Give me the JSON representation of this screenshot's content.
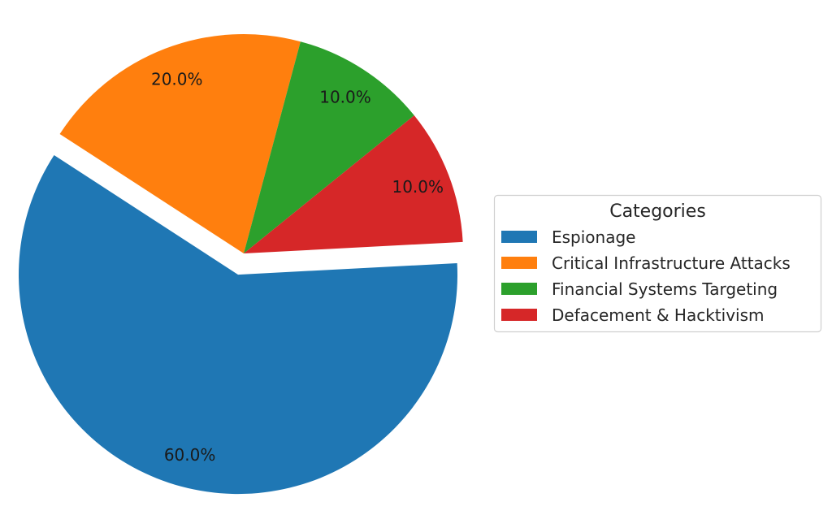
{
  "chart_data": {
    "type": "pie",
    "title": "",
    "legend": {
      "title": "Categories",
      "placement": "right"
    },
    "slices": [
      {
        "label": "Espionage",
        "value": 60,
        "pct_label": "60.0%",
        "color": "#1f77b4",
        "exploded": true
      },
      {
        "label": "Critical Infrastructure Attacks",
        "value": 20,
        "pct_label": "20.0%",
        "color": "#ff7f0e",
        "exploded": false
      },
      {
        "label": "Financial Systems Targeting",
        "value": 10,
        "pct_label": "10.0%",
        "color": "#2ca02c",
        "exploded": false
      },
      {
        "label": "Defacement & Hacktivism",
        "value": 10,
        "pct_label": "10.0%",
        "color": "#d62728",
        "exploded": false
      }
    ]
  }
}
